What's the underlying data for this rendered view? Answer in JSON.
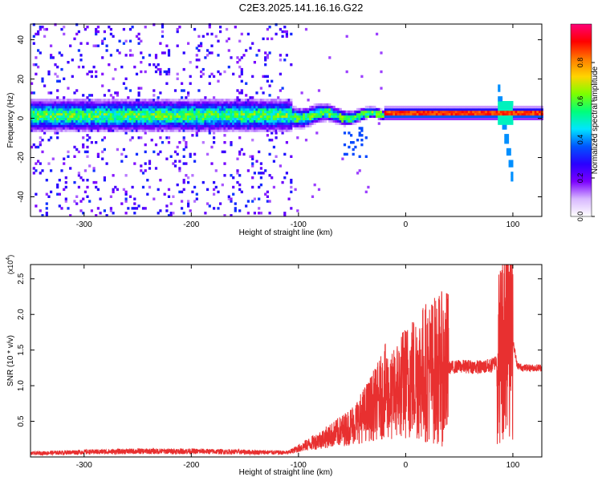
{
  "title": "C2E3.2025.141.16.16.G22",
  "spectrogram": {
    "ylabel": "Frequency (Hz)",
    "xlabel": "Height of straight line (km)",
    "xlim": [
      -350,
      127
    ],
    "ylim": [
      -50,
      48
    ],
    "x_ticks": [
      -300,
      -200,
      -100,
      0,
      100
    ],
    "x_tick_labels": [
      "-300",
      "-200",
      "-100",
      "0",
      "100"
    ],
    "y_ticks": [
      -40,
      -20,
      0,
      20,
      40
    ],
    "y_tick_labels": [
      "-40",
      "-20",
      "0",
      "20",
      "40"
    ],
    "colorbar": {
      "label": "Normalized spectral amplitude",
      "range": [
        0,
        1
      ],
      "ticks": [
        0.0,
        0.2,
        0.4,
        0.6,
        0.8
      ],
      "tick_labels": [
        "0.0",
        "0.2",
        "0.4",
        "0.6",
        "0.8"
      ],
      "colors": [
        "#ffffff",
        "#d8b8ff",
        "#7b00ff",
        "#2a00ff",
        "#0055ff",
        "#00e5ff",
        "#00ff7a",
        "#7cff00",
        "#ffd400",
        "#ff7a00",
        "#ff0000",
        "#ff0077"
      ]
    }
  },
  "chart_data": {
    "type": "line",
    "title": "C2E3.2025.141.16.16.G22",
    "xlabel": "Height of straight line (km)",
    "ylabel": "SNR (10 * v/v)",
    "y_multiplier": "(x10",
    "y_multiplier_exp": "4",
    "xlim": [
      -350,
      127
    ],
    "ylim": [
      0,
      27000
    ],
    "x_ticks": [
      -300,
      -200,
      -100,
      0,
      100
    ],
    "x_tick_labels": [
      "-300",
      "-200",
      "-100",
      "0",
      "100"
    ],
    "y_ticks": [
      5000,
      10000,
      15000,
      20000,
      25000
    ],
    "y_tick_labels": [
      "0.5",
      "1.0",
      "1.5",
      "2.0",
      "2.5"
    ],
    "color": "#e83030",
    "series": [
      {
        "x": [
          -350,
          -300,
          -250,
          -200,
          -150,
          -110,
          -90,
          -70,
          -55,
          -45,
          -35,
          -28,
          -22,
          -18,
          -15,
          -12,
          -8,
          -4,
          0,
          5,
          10,
          20,
          30,
          40,
          50,
          60,
          70,
          80,
          85,
          88,
          90,
          92,
          94,
          96,
          98,
          100,
          104,
          110,
          115,
          127
        ],
        "y": [
          500,
          700,
          800,
          800,
          700,
          600,
          1800,
          3000,
          4000,
          5000,
          6500,
          7500,
          8500,
          9500,
          8000,
          8500,
          9500,
          10000,
          10500,
          11000,
          11500,
          12000,
          12300,
          12500,
          12700,
          12700,
          12600,
          12800,
          13500,
          14500,
          16000,
          19000,
          22000,
          26500,
          21000,
          16500,
          12800,
          12500,
          12500,
          12500
        ]
      }
    ]
  }
}
